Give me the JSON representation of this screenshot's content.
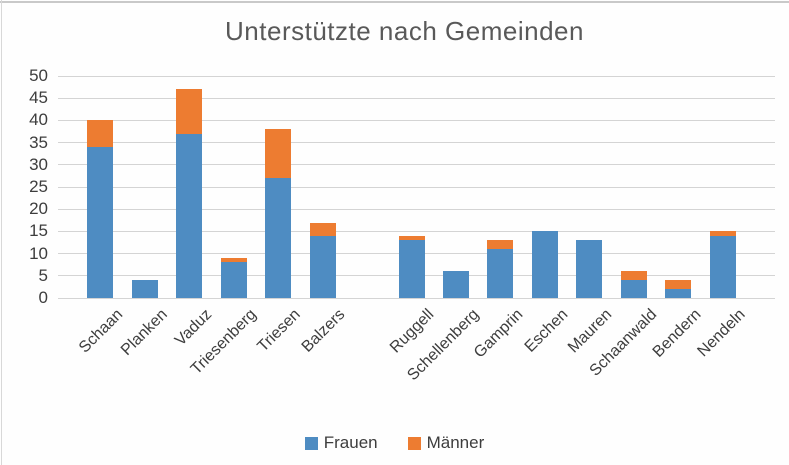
{
  "title": "Unterstützte nach Gemeinden",
  "colors": {
    "frauen": "#4e8cc2",
    "maenner": "#ed7c31",
    "title_text": "#595959",
    "axis_text": "#3d3d3d",
    "gridline": "#d4d4d4"
  },
  "chart_data": {
    "type": "bar",
    "stacked": true,
    "title": "Unterstützte nach Gemeinden",
    "categories": [
      "Schaan",
      "Planken",
      "Vaduz",
      "Triesenberg",
      "Triesen",
      "Balzers",
      "",
      "Ruggell",
      "Schellenberg",
      "Gamprin",
      "Eschen",
      "Mauren",
      "Schaanwald",
      "Bendern",
      "Nendeln"
    ],
    "series": [
      {
        "name": "Frauen",
        "color": "#4e8cc2",
        "values": [
          34,
          4,
          37,
          8,
          27,
          14,
          null,
          13,
          6,
          11,
          15,
          13,
          4,
          2,
          14
        ]
      },
      {
        "name": "Männer",
        "color": "#ed7c31",
        "values": [
          6,
          0,
          10,
          1,
          11,
          3,
          null,
          1,
          0,
          2,
          0,
          0,
          2,
          2,
          1
        ]
      }
    ],
    "totals": [
      40,
      4,
      47,
      9,
      38,
      17,
      null,
      14,
      6,
      13,
      15,
      13,
      6,
      4,
      15
    ],
    "xlabel": "",
    "ylabel": "",
    "ylim": [
      0,
      50
    ],
    "ytick_step": 5,
    "yticks": [
      0,
      5,
      10,
      15,
      20,
      25,
      30,
      35,
      40,
      45,
      50
    ],
    "grid": "horizontal",
    "legend_position": "bottom",
    "legend_labels": [
      "Frauen",
      "Männer"
    ]
  }
}
